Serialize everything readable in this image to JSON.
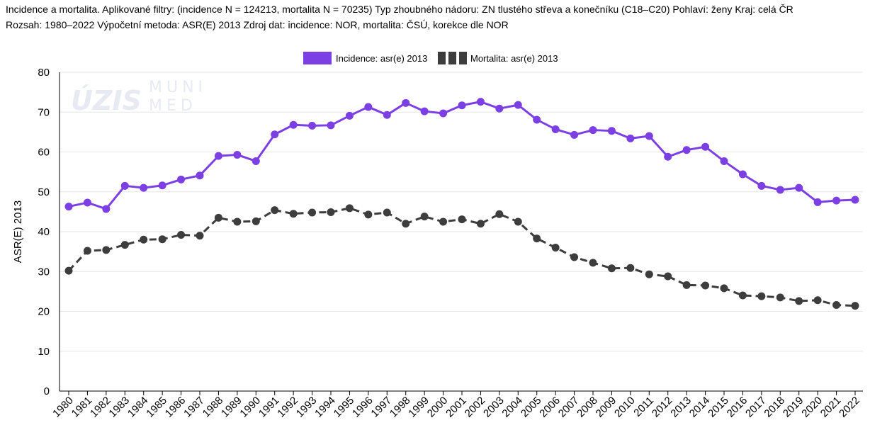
{
  "header": {
    "line1": "Incidence a mortalita. Aplikované filtry: (incidence N = 124213, mortalita N = 70235) Typ zhoubného nádoru: ZN tlustého střeva a konečníku (C18–C20) Pohlaví: ženy Kraj: celá ČR",
    "line2": "Rozsah: 1980–2022 Výpočetní metoda: ASR(E) 2013 Zdroj dat: incidence: NOR, mortalita: ČSÚ, korekce dle NOR"
  },
  "watermark": {
    "logo1": "ÚZIS",
    "logo2a": "MUNI",
    "logo2b": "MED"
  },
  "colors": {
    "incidence": "#7b3fe4",
    "mortalita": "#3d3d3d",
    "grid": "#e6e6e6",
    "axis": "#000000"
  },
  "chart_data": {
    "type": "line",
    "title": "",
    "xlabel": "",
    "ylabel": "ASR(E) 2013",
    "ylim": [
      0,
      80
    ],
    "yticks": [
      "0",
      "10",
      "20",
      "30",
      "40",
      "50",
      "60",
      "70",
      "80"
    ],
    "grid": "horizontal",
    "legend_position": "top-center",
    "x": [
      "1980",
      "1981",
      "1982",
      "1983",
      "1984",
      "1985",
      "1986",
      "1987",
      "1988",
      "1989",
      "1990",
      "1991",
      "1992",
      "1993",
      "1994",
      "1995",
      "1996",
      "1997",
      "1998",
      "1999",
      "2000",
      "2001",
      "2002",
      "2003",
      "2004",
      "2005",
      "2006",
      "2007",
      "2008",
      "2009",
      "2010",
      "2011",
      "2012",
      "2013",
      "2014",
      "2015",
      "2016",
      "2017",
      "2018",
      "2019",
      "2020",
      "2021",
      "2022"
    ],
    "series": [
      {
        "name": "Incidence: asr(e) 2013",
        "style": "solid",
        "values": [
          46.3,
          47.3,
          45.7,
          51.5,
          51.0,
          51.6,
          53.1,
          54.1,
          59.0,
          59.3,
          57.7,
          64.4,
          66.8,
          66.6,
          66.7,
          69.1,
          71.3,
          69.3,
          72.3,
          70.2,
          69.7,
          71.7,
          72.6,
          70.9,
          71.8,
          68.1,
          65.7,
          64.3,
          65.5,
          65.3,
          63.4,
          64.0,
          58.8,
          60.5,
          61.3,
          57.7,
          54.4,
          51.5,
          50.5,
          51.0,
          47.4,
          47.8,
          48.0
        ]
      },
      {
        "name": "Mortalita: asr(e) 2013",
        "style": "dashed",
        "values": [
          30.2,
          35.2,
          35.4,
          36.7,
          38.0,
          38.1,
          39.2,
          39.0,
          43.5,
          42.5,
          42.6,
          45.4,
          44.5,
          44.8,
          44.9,
          45.9,
          44.3,
          44.8,
          42.0,
          43.8,
          42.5,
          43.1,
          42.0,
          44.4,
          42.5,
          38.3,
          36.0,
          33.6,
          32.2,
          30.8,
          30.9,
          29.3,
          28.8,
          26.6,
          26.5,
          25.8,
          24.0,
          23.8,
          23.5,
          22.6,
          22.8,
          21.6,
          21.4
        ]
      }
    ]
  }
}
